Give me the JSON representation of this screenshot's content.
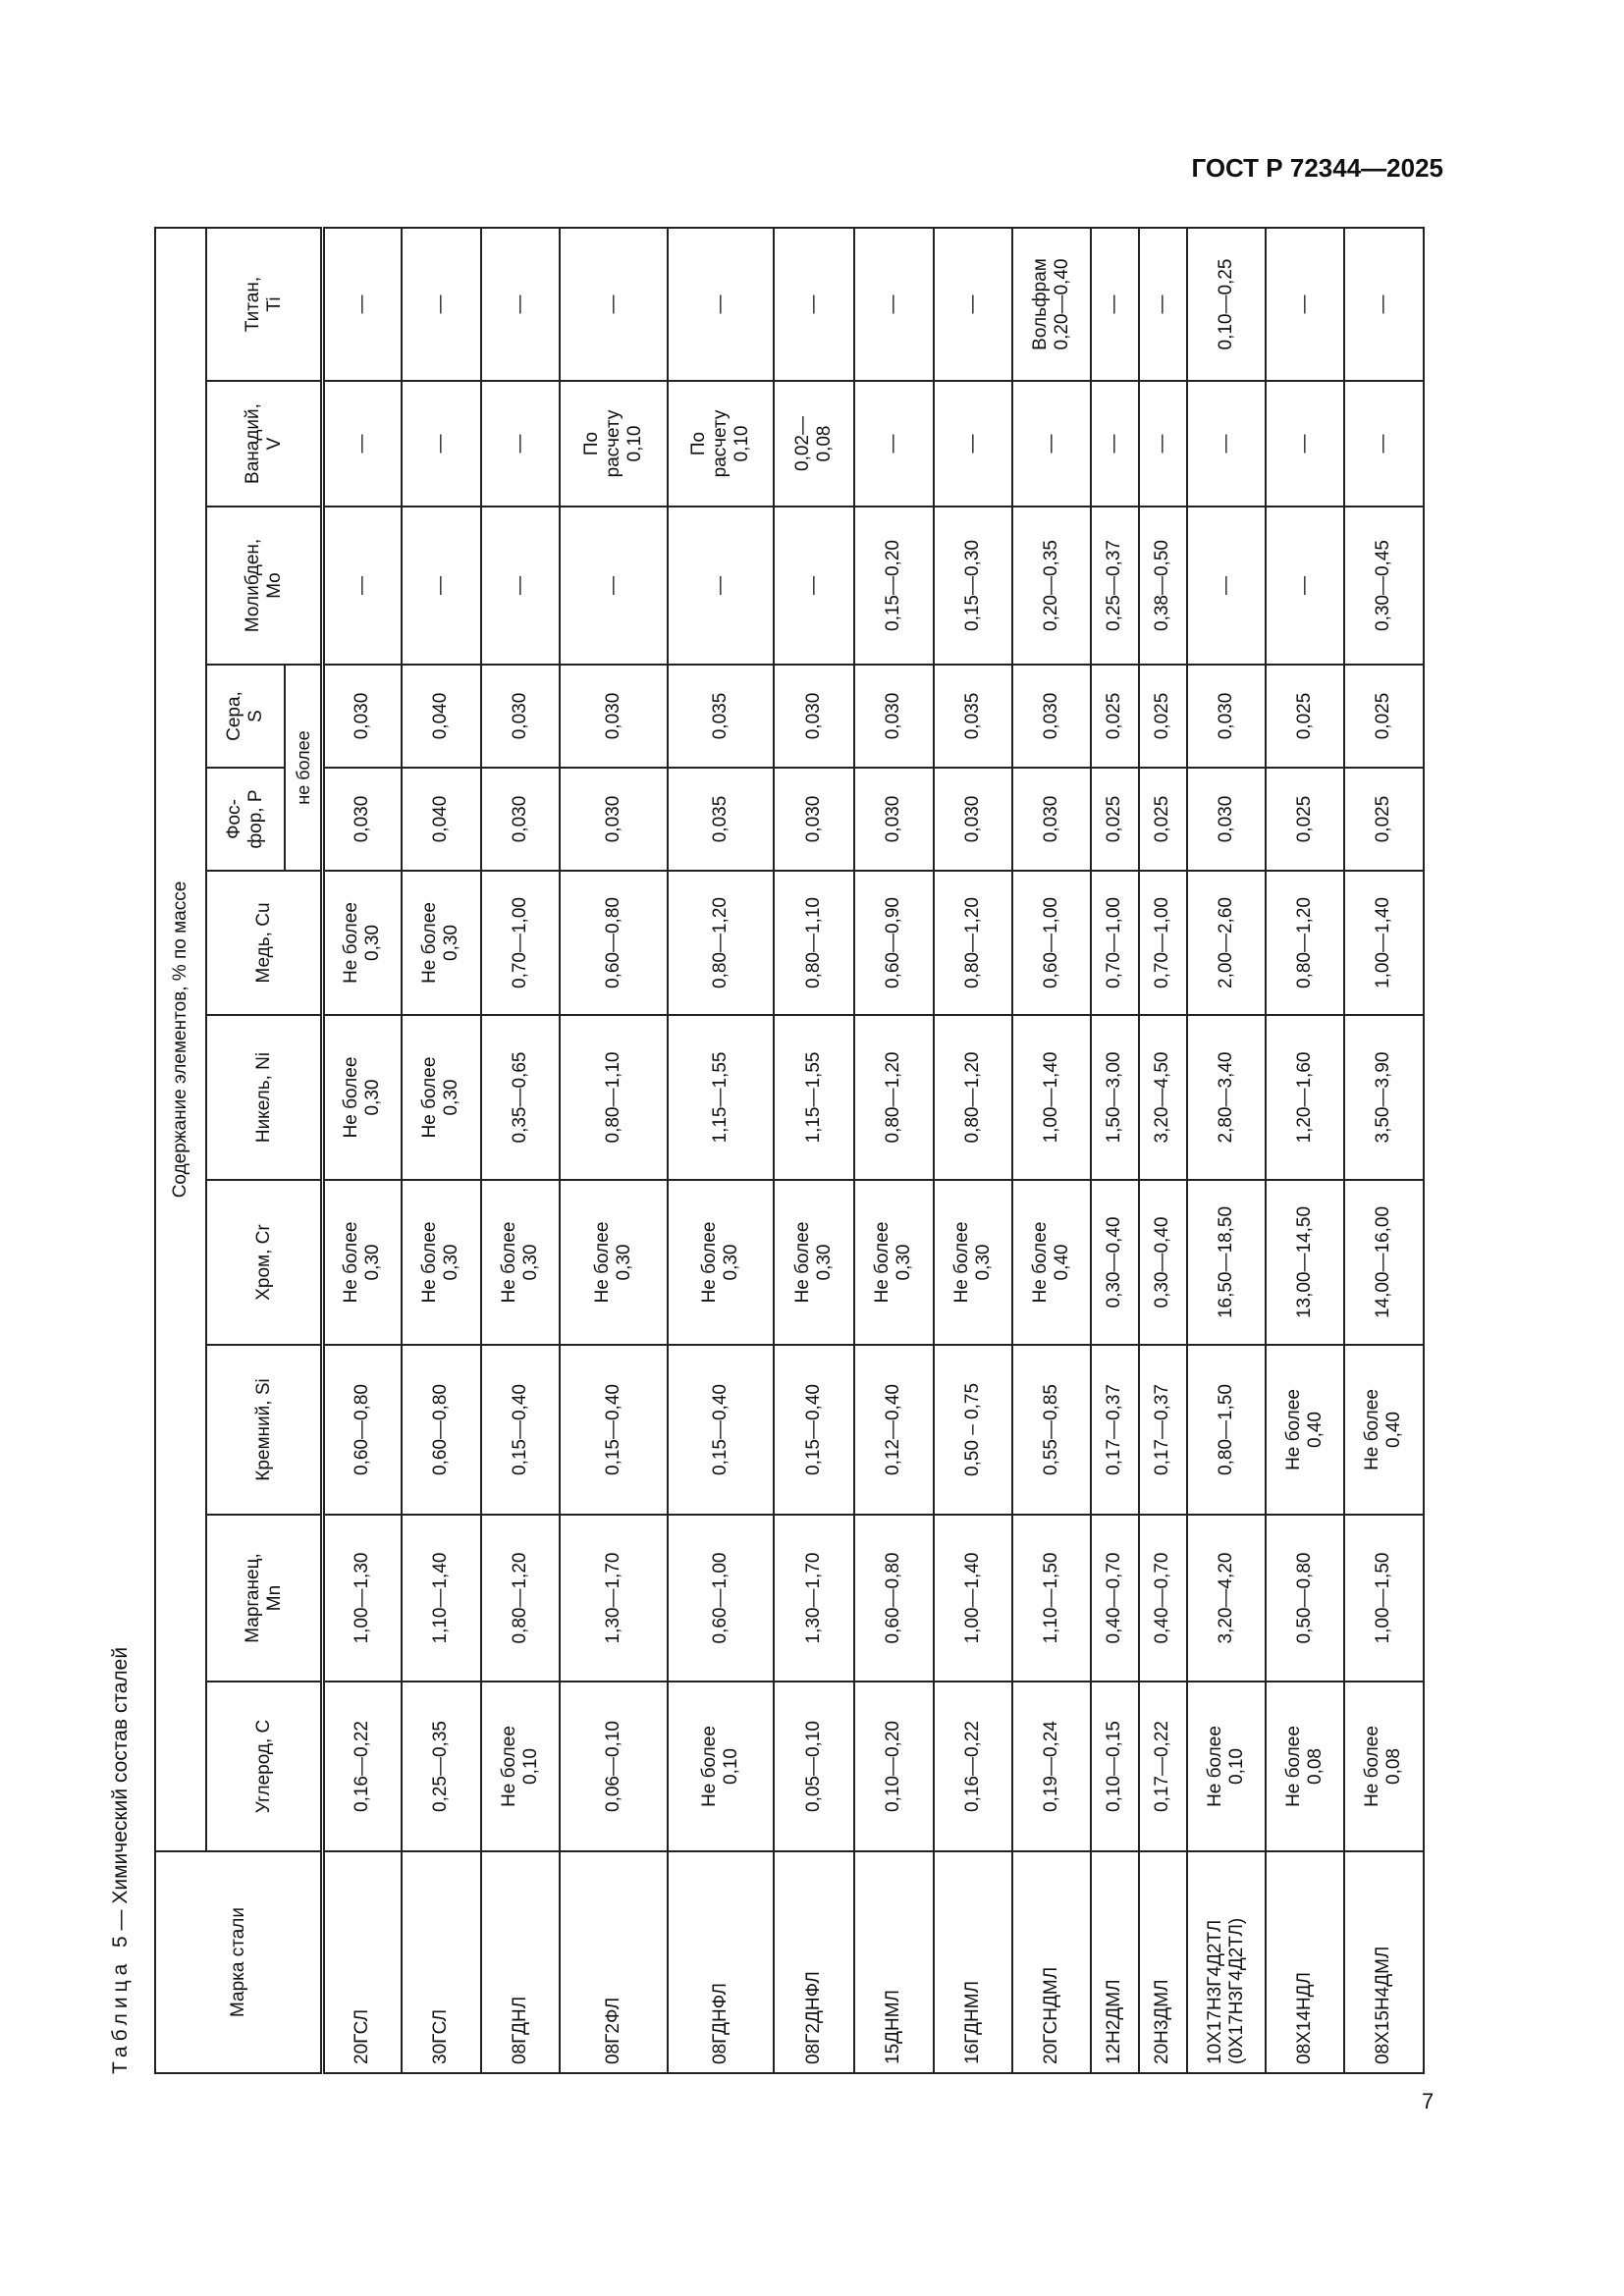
{
  "page_header": "ГОСТ Р 72344—2025",
  "page_number": "7",
  "caption": {
    "label": "Таблица",
    "number": "5",
    "text": "— Химический состав сталей"
  },
  "table": {
    "grade_header": "Марка стали",
    "group_header": "Содержание элементов, % по массе",
    "columns": [
      "Углерод, C",
      "Марганец,\nMn",
      "Кремний, Si",
      "Хром, Cr",
      "Никель, Ni",
      "Медь, Cu",
      "Фос-\nфор, P",
      "Сера,\nS",
      "Молибден,\nMo",
      "Ванадий,\nV",
      "Титан,\nTi"
    ],
    "subheader": "не более",
    "rows": [
      {
        "grade": "20ГСЛ",
        "values": [
          "0,16—0,22",
          "1,00—1,30",
          "0,60—0,80",
          "Не более\n0,30",
          "Не более\n0,30",
          "Не более\n0,30",
          "0,030",
          "0,030",
          "—",
          "—",
          "—"
        ]
      },
      {
        "grade": "30ГСЛ",
        "values": [
          "0,25—0,35",
          "1,10—1,40",
          "0,60—0,80",
          "Не более\n0,30",
          "Не более\n0,30",
          "Не более\n0,30",
          "0,040",
          "0,040",
          "—",
          "—",
          "—"
        ]
      },
      {
        "grade": "08ГДНЛ",
        "values": [
          "Не более\n0,10",
          "0,80—1,20",
          "0,15—0,40",
          "Не более\n0,30",
          "0,35—0,65",
          "0,70—1,00",
          "0,030",
          "0,030",
          "—",
          "—",
          "—"
        ]
      },
      {
        "grade": "08Г2ФЛ",
        "values": [
          "0,06—0,10",
          "1,30—1,70",
          "0,15—0,40",
          "Не более\n0,30",
          "0,80—1,10",
          "0,60—0,80",
          "0,030",
          "0,030",
          "—",
          "По\nрасчету\n0,10",
          "—"
        ]
      },
      {
        "grade": "08ГДНФЛ",
        "values": [
          "Не более\n0,10",
          "0,60—1,00",
          "0,15—0,40",
          "Не более\n0,30",
          "1,15—1,55",
          "0,80—1,20",
          "0,035",
          "0,035",
          "—",
          "По\nрасчету\n0,10",
          "—"
        ]
      },
      {
        "grade": "08Г2ДНФЛ",
        "values": [
          "0,05—0,10",
          "1,30—1,70",
          "0,15—0,40",
          "Не более\n0,30",
          "1,15—1,55",
          "0,80—1,10",
          "0,030",
          "0,030",
          "—",
          "0,02—\n0,08",
          "—"
        ]
      },
      {
        "grade": "15ДНМЛ",
        "values": [
          "0,10—0,20",
          "0,60—0,80",
          "0,12—0,40",
          "Не более\n0,30",
          "0,80—1,20",
          "0,60—0,90",
          "0,030",
          "0,030",
          "0,15—0,20",
          "—",
          "—"
        ]
      },
      {
        "grade": "16ГДНМЛ",
        "values": [
          "0,16—0,22",
          "1,00—1,40",
          "0,50 – 0,75",
          "Не более\n0,30",
          "0,80—1,20",
          "0,80—1,20",
          "0,030",
          "0,035",
          "0,15—0,30",
          "—",
          "—"
        ]
      },
      {
        "grade": "20ГСНДМЛ",
        "values": [
          "0,19—0,24",
          "1,10—1,50",
          "0,55—0,85",
          "Не более\n0,40",
          "1,00—1,40",
          "0,60—1,00",
          "0,030",
          "0,030",
          "0,20—0,35",
          "—",
          "Вольфрам\n0,20—0,40"
        ]
      },
      {
        "grade": "12Н2ДМЛ",
        "values": [
          "0,10—0,15",
          "0,40—0,70",
          "0,17—0,37",
          "0,30—0,40",
          "1,50—3,00",
          "0,70—1,00",
          "0,025",
          "0,025",
          "0,25—0,37",
          "—",
          "—"
        ]
      },
      {
        "grade": "20Н3ДМЛ",
        "values": [
          "0,17—0,22",
          "0,40—0,70",
          "0,17—0,37",
          "0,30—0,40",
          "3,20—4,50",
          "0,70—1,00",
          "0,025",
          "0,025",
          "0,38—0,50",
          "—",
          "—"
        ]
      },
      {
        "grade": "10Х17Н3Г4Д2ТЛ\n(0Х17Н3Г4Д2ТЛ)",
        "values": [
          "Не более\n0,10",
          "3,20—4,20",
          "0,80—1,50",
          "16,50—18,50",
          "2,80—3,40",
          "2,00—2,60",
          "0,030",
          "0,030",
          "—",
          "—",
          "0,10—0,25"
        ]
      },
      {
        "grade": "08Х14НДЛ",
        "values": [
          "Не более\n0,08",
          "0,50—0,80",
          "Не более\n0,40",
          "13,00—14,50",
          "1,20—1,60",
          "0,80—1,20",
          "0,025",
          "0,025",
          "—",
          "—",
          "—"
        ]
      },
      {
        "grade": "08Х15Н4ДМЛ",
        "values": [
          "Не более\n0,08",
          "1,00—1,50",
          "Не более\n0,40",
          "14,00—16,00",
          "3,50—3,90",
          "1,00—1,40",
          "0,025",
          "0,025",
          "0,30—0,45",
          "—",
          "—"
        ]
      }
    ]
  }
}
